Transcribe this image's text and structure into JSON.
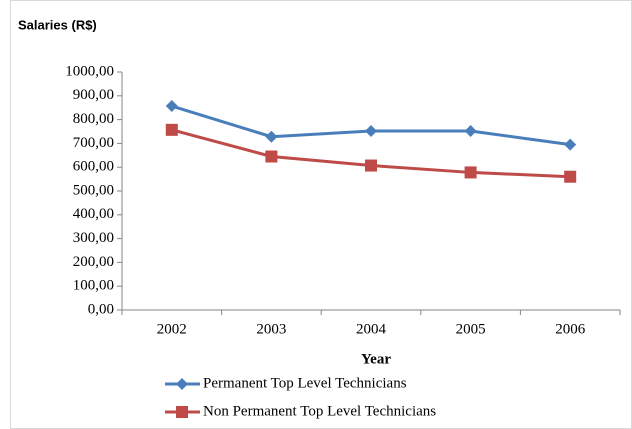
{
  "chart_data": {
    "type": "line",
    "y_axis_label": "Salaries (R$)",
    "x_axis_label": "Year",
    "categories": [
      "2002",
      "2003",
      "2004",
      "2005",
      "2006"
    ],
    "series": [
      {
        "name": "Permanent Top Level Technicians",
        "color": "#4a7ebb",
        "marker": "diamond",
        "values": [
          857,
          728,
          752,
          752,
          695
        ]
      },
      {
        "name": "Non Permanent Top Level Technicians",
        "color": "#be4b48",
        "marker": "square",
        "values": [
          757,
          645,
          607,
          578,
          560
        ]
      }
    ],
    "ylim": [
      0,
      1000
    ],
    "yticks": [
      {
        "value": 0,
        "label": "0,00"
      },
      {
        "value": 100,
        "label": "100,00"
      },
      {
        "value": 200,
        "label": "200,00"
      },
      {
        "value": 300,
        "label": "300,00"
      },
      {
        "value": 400,
        "label": "400,00"
      },
      {
        "value": 500,
        "label": "500,00"
      },
      {
        "value": 600,
        "label": "600,00"
      },
      {
        "value": 700,
        "label": "700,00"
      },
      {
        "value": 800,
        "label": "800,00"
      },
      {
        "value": 900,
        "label": "900,00"
      },
      {
        "value": 1000,
        "label": "1000,00"
      }
    ],
    "legend": "bottom"
  }
}
